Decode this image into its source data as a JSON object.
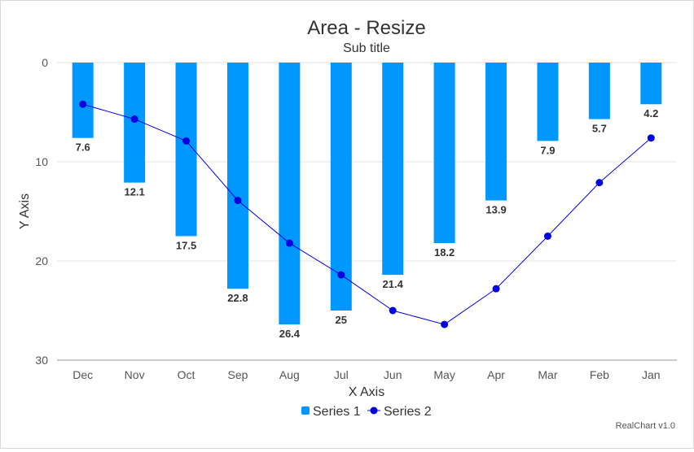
{
  "chart_data": {
    "type": "bar",
    "title": "Area - Resize",
    "subtitle": "Sub title",
    "xlabel": "X Axis",
    "ylabel": "Y Axis",
    "categories": [
      "Dec",
      "Nov",
      "Oct",
      "Sep",
      "Aug",
      "Jul",
      "Jun",
      "May",
      "Apr",
      "Mar",
      "Feb",
      "Jan"
    ],
    "ylim": [
      0,
      30
    ],
    "y_reversed": true,
    "yticks": [
      0,
      10,
      20,
      30
    ],
    "grid": true,
    "legend_position": "bottom-center",
    "series": [
      {
        "name": "Series 1",
        "type": "bar",
        "color": "#0098ff",
        "values": [
          7.6,
          12.1,
          17.5,
          22.8,
          26.4,
          25,
          21.4,
          18.2,
          13.9,
          7.9,
          5.7,
          4.2
        ],
        "data_labels": [
          "7.6",
          "12.1",
          "17.5",
          "22.8",
          "26.4",
          "25",
          "21.4",
          "18.2",
          "13.9",
          "7.9",
          "5.7",
          "4.2"
        ]
      },
      {
        "name": "Series 2",
        "type": "line",
        "color": "#0000e0",
        "values": [
          4.2,
          5.7,
          7.9,
          13.9,
          18.2,
          21.4,
          25,
          26.4,
          22.8,
          17.5,
          12.1,
          7.6
        ]
      }
    ],
    "credit": "RealChart v1.0"
  }
}
